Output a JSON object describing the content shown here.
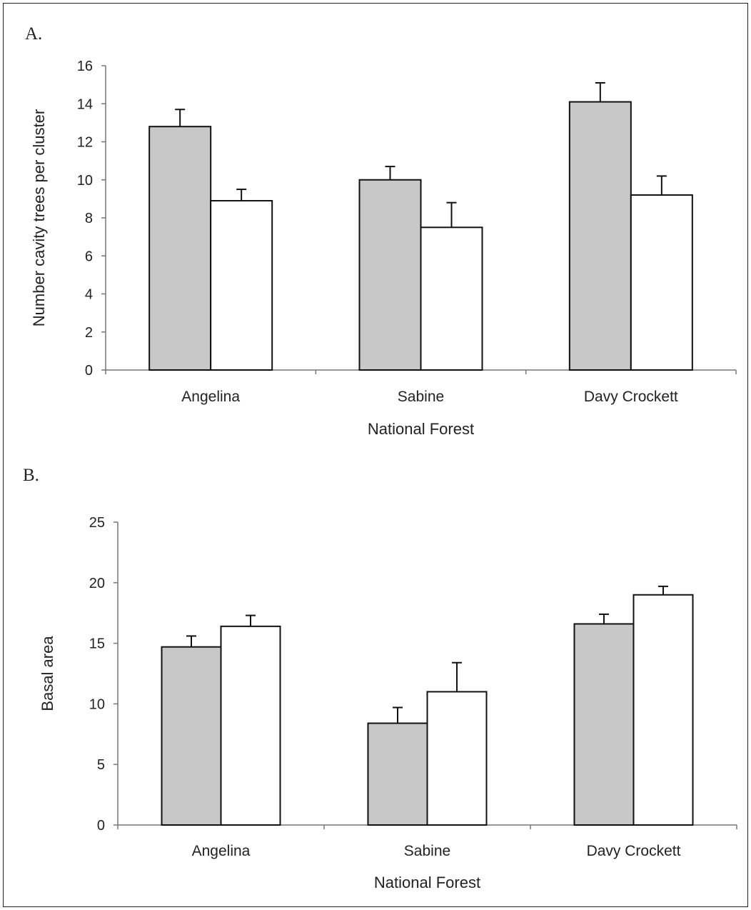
{
  "chart_data": [
    {
      "type": "bar",
      "panel_label": "A.",
      "categories": [
        "Angelina",
        "Sabine",
        "Davy Crockett"
      ],
      "series": [
        {
          "values": [
            12.8,
            10.0,
            14.1
          ],
          "errors": [
            0.9,
            0.7,
            1.0
          ],
          "color": "#c8c8c8"
        },
        {
          "values": [
            8.9,
            7.5,
            9.2
          ],
          "errors": [
            0.6,
            1.3,
            1.0
          ],
          "color": "#ffffff"
        }
      ],
      "xlabel": "National Forest",
      "ylabel": "Number cavity trees per cluster",
      "ylim": [
        0,
        16
      ],
      "yticks": [
        "0",
        "2",
        "4",
        "6",
        "8",
        "10",
        "12",
        "14",
        "16"
      ],
      "grid": false
    },
    {
      "type": "bar",
      "panel_label": "B.",
      "categories": [
        "Angelina",
        "Sabine",
        "Davy Crockett"
      ],
      "series": [
        {
          "values": [
            14.7,
            8.4,
            16.6
          ],
          "errors": [
            0.9,
            1.3,
            0.8
          ],
          "color": "#c8c8c8"
        },
        {
          "values": [
            16.4,
            11.0,
            19.0
          ],
          "errors": [
            0.9,
            2.4,
            0.7
          ],
          "color": "#ffffff"
        }
      ],
      "xlabel": "National Forest",
      "ylabel": "Basal area",
      "ylim": [
        0,
        25
      ],
      "yticks": [
        "0",
        "5",
        "10",
        "15",
        "20",
        "25"
      ],
      "grid": false
    }
  ]
}
